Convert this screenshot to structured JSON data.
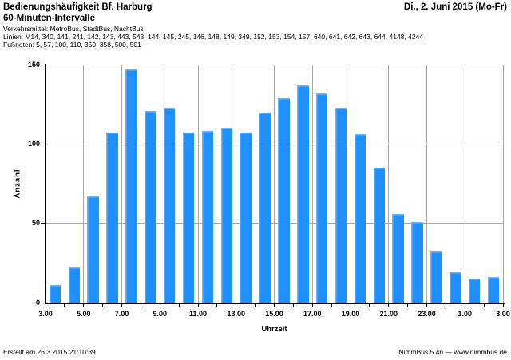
{
  "header": {
    "title": "Bedienungshäufigkeit Bf. Harburg",
    "subtitle": "60-Minuten-Intervalle",
    "date": "Di., 2. Juni 2015 (Mo-Fr)"
  },
  "meta": {
    "verkehrsmittel": "Verkehrsmittel: MetroBus, StadtBus, NachtBus",
    "linien": "Linien: M14, 340, 141, 241, 142, 143, 443, 543, 144, 145, 245, 146, 148, 149, 349, 152, 153, 154, 157, 640, 641, 642, 643, 644, 4148, 4244",
    "fussnoten": "Fußnoten: 5, 57, 100, 110, 350, 358, 500, 501"
  },
  "chart_data": {
    "type": "bar",
    "title": "Bedienungshäufigkeit Bf. Harburg — 60-Minuten-Intervalle",
    "xlabel": "Uhrzeit",
    "ylabel": "Anzahl",
    "ylim": [
      0,
      150
    ],
    "yticks": [
      0,
      50,
      100,
      150
    ],
    "x_tick_labels": [
      "3.00",
      "5.00",
      "7.00",
      "9.00",
      "11.00",
      "13.00",
      "15.00",
      "17.00",
      "19.00",
      "21.00",
      "23.00",
      "1.00",
      "3.00"
    ],
    "grid": true,
    "categories": [
      "3.00",
      "4.00",
      "5.00",
      "6.00",
      "7.00",
      "8.00",
      "9.00",
      "10.00",
      "11.00",
      "12.00",
      "13.00",
      "14.00",
      "15.00",
      "16.00",
      "17.00",
      "18.00",
      "19.00",
      "20.00",
      "21.00",
      "22.00",
      "23.00",
      "0.00",
      "1.00",
      "2.00"
    ],
    "values": [
      11,
      22,
      67,
      107,
      147,
      121,
      123,
      107,
      108,
      110,
      107,
      120,
      129,
      137,
      132,
      123,
      106,
      85,
      56,
      51,
      32,
      19,
      15,
      16
    ],
    "colors": {
      "bar": "#1E90FF",
      "bar_highlight": "#6AB4FB",
      "gridline": "#A6A6A6",
      "axis": "#000000"
    }
  },
  "footer": {
    "created": "Erstellt am 26.3.2015 21:10:39",
    "app": "NimmBus 5.4n — www.nimmbus.de"
  }
}
